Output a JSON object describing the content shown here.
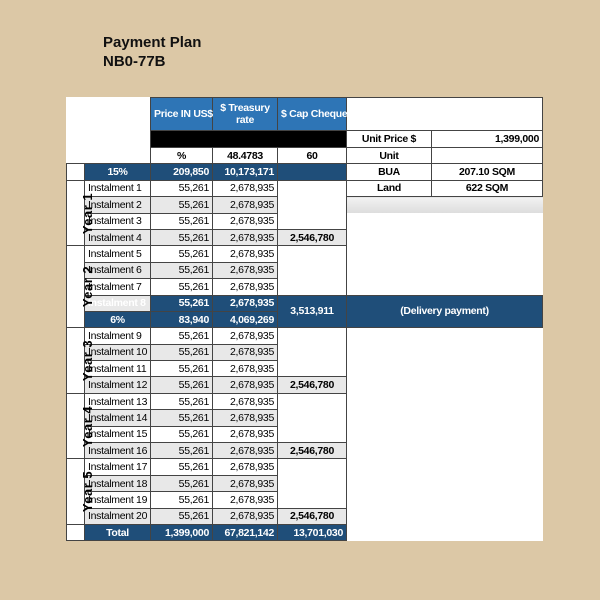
{
  "title": {
    "line1": "Payment Plan",
    "line2": "NB0-77B"
  },
  "colors": {
    "header_blue": "#2e75b6",
    "navy": "#1f4e79",
    "background": "#dcc8a6"
  },
  "headers": {
    "price": "Price IN US$",
    "treasury": "$ Treasury rate",
    "cap": "$ Cap Cheques"
  },
  "rates": {
    "price": "%",
    "treasury": "48.4783",
    "cap": "60"
  },
  "info": [
    {
      "label": "Unit Price $",
      "value": "1,399,000"
    },
    {
      "label": "Unit",
      "value": ""
    },
    {
      "label": "BUA",
      "value": "207.10 SQM"
    },
    {
      "label": "Land",
      "value": "622 SQM"
    }
  ],
  "down_payment": {
    "label": "15%",
    "price": "209,850",
    "treasury": "10,173,171"
  },
  "delivery": {
    "label": "6%",
    "price": "83,940",
    "treasury": "4,069,269",
    "cap": "3,513,911",
    "note": "(Delivery payment)"
  },
  "years": [
    "Year 1",
    "Year 2",
    "Year 3",
    "Year 4",
    "Year 5"
  ],
  "instalments": [
    {
      "label": "Instalment 1",
      "price": "55,261",
      "treasury": "2,678,935"
    },
    {
      "label": "Instalment 2",
      "price": "55,261",
      "treasury": "2,678,935"
    },
    {
      "label": "Instalment 3",
      "price": "55,261",
      "treasury": "2,678,935"
    },
    {
      "label": "Instalment 4",
      "price": "55,261",
      "treasury": "2,678,935",
      "cap": "2,546,780"
    },
    {
      "label": "Instalment 5",
      "price": "55,261",
      "treasury": "2,678,935"
    },
    {
      "label": "Instalment 6",
      "price": "55,261",
      "treasury": "2,678,935"
    },
    {
      "label": "Instalment 7",
      "price": "55,261",
      "treasury": "2,678,935"
    },
    {
      "label": "Instalment 8",
      "price": "55,261",
      "treasury": "2,678,935"
    },
    {
      "label": "Instalment 9",
      "price": "55,261",
      "treasury": "2,678,935"
    },
    {
      "label": "Instalment 10",
      "price": "55,261",
      "treasury": "2,678,935"
    },
    {
      "label": "Instalment 11",
      "price": "55,261",
      "treasury": "2,678,935"
    },
    {
      "label": "Instalment 12",
      "price": "55,261",
      "treasury": "2,678,935",
      "cap": "2,546,780"
    },
    {
      "label": "Instalment 13",
      "price": "55,261",
      "treasury": "2,678,935"
    },
    {
      "label": "Instalment 14",
      "price": "55,261",
      "treasury": "2,678,935"
    },
    {
      "label": "Instalment 15",
      "price": "55,261",
      "treasury": "2,678,935"
    },
    {
      "label": "Instalment 16",
      "price": "55,261",
      "treasury": "2,678,935",
      "cap": "2,546,780"
    },
    {
      "label": "Instalment 17",
      "price": "55,261",
      "treasury": "2,678,935"
    },
    {
      "label": "Instalment 18",
      "price": "55,261",
      "treasury": "2,678,935"
    },
    {
      "label": "Instalment 19",
      "price": "55,261",
      "treasury": "2,678,935"
    },
    {
      "label": "Instalment 20",
      "price": "55,261",
      "treasury": "2,678,935",
      "cap": "2,546,780"
    }
  ],
  "total": {
    "label": "Total",
    "price": "1,399,000",
    "treasury": "67,821,142",
    "cap": "13,701,030"
  }
}
